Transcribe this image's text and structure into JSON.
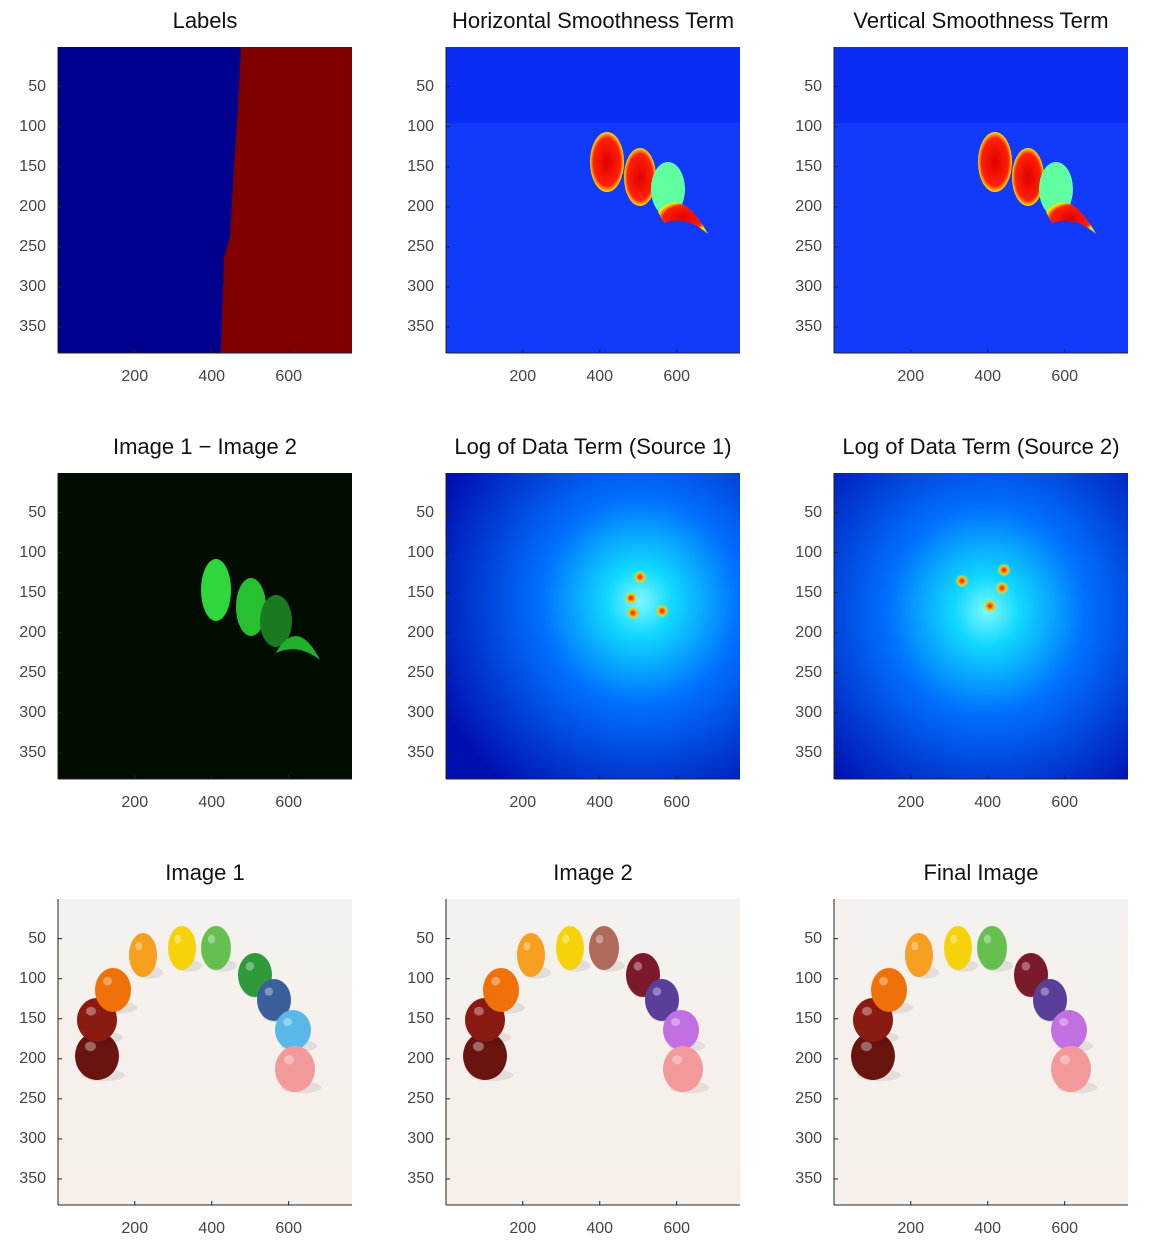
{
  "chart_data": [
    {
      "type": "image",
      "title": "Labels",
      "xlim": [
        0.5,
        764.5
      ],
      "ylim": [
        0.5,
        382.5
      ],
      "y_reversed": true,
      "xticks": [
        200,
        400,
        600
      ],
      "yticks": [
        50,
        100,
        150,
        200,
        250,
        300,
        350
      ],
      "grid": false
    },
    {
      "type": "image",
      "title": "Horizontal Smoothness Term",
      "xlim": [
        0.5,
        764.5
      ],
      "ylim": [
        0.5,
        382.5
      ],
      "y_reversed": true,
      "xticks": [
        200,
        400,
        600
      ],
      "yticks": [
        50,
        100,
        150,
        200,
        250,
        300,
        350
      ],
      "grid": false
    },
    {
      "type": "image",
      "title": "Vertical Smoothness Term",
      "xlim": [
        0.5,
        764.5
      ],
      "ylim": [
        0.5,
        382.5
      ],
      "y_reversed": true,
      "xticks": [
        200,
        400,
        600
      ],
      "yticks": [
        50,
        100,
        150,
        200,
        250,
        300,
        350
      ],
      "grid": false
    },
    {
      "type": "image",
      "title": "Image 1 − Image 2",
      "xlim": [
        0.5,
        764.5
      ],
      "ylim": [
        0.5,
        382.5
      ],
      "y_reversed": true,
      "xticks": [
        200,
        400,
        600
      ],
      "yticks": [
        50,
        100,
        150,
        200,
        250,
        300,
        350
      ],
      "grid": false
    },
    {
      "type": "image",
      "title": "Log of Data Term (Source 1)",
      "xlim": [
        0.5,
        764.5
      ],
      "ylim": [
        0.5,
        382.5
      ],
      "y_reversed": true,
      "xticks": [
        200,
        400,
        600
      ],
      "yticks": [
        50,
        100,
        150,
        200,
        250,
        300,
        350
      ],
      "grid": false
    },
    {
      "type": "image",
      "title": "Log of Data Term (Source 2)",
      "xlim": [
        0.5,
        764.5
      ],
      "ylim": [
        0.5,
        382.5
      ],
      "y_reversed": true,
      "xticks": [
        200,
        400,
        600
      ],
      "yticks": [
        50,
        100,
        150,
        200,
        250,
        300,
        350
      ],
      "grid": false
    },
    {
      "type": "image",
      "title": "Image 1",
      "xlim": [
        0.5,
        764.5
      ],
      "ylim": [
        0.5,
        382.5
      ],
      "y_reversed": true,
      "xticks": [
        200,
        400,
        600
      ],
      "yticks": [
        50,
        100,
        150,
        200,
        250,
        300,
        350
      ],
      "grid": false
    },
    {
      "type": "image",
      "title": "Image 2",
      "xlim": [
        0.5,
        764.5
      ],
      "ylim": [
        0.5,
        382.5
      ],
      "y_reversed": true,
      "xticks": [
        200,
        400,
        600
      ],
      "yticks": [
        50,
        100,
        150,
        200,
        250,
        300,
        350
      ],
      "grid": false
    },
    {
      "type": "image",
      "title": "Final Image",
      "xlim": [
        0.5,
        764.5
      ],
      "ylim": [
        0.5,
        382.5
      ],
      "y_reversed": true,
      "xticks": [
        200,
        400,
        600
      ],
      "yticks": [
        50,
        100,
        150,
        200,
        250,
        300,
        350
      ],
      "grid": false
    }
  ]
}
